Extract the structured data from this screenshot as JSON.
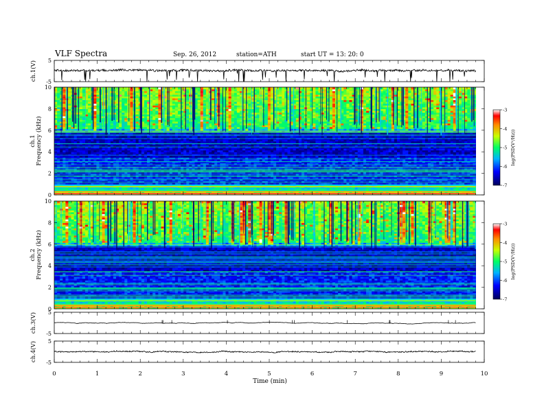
{
  "header": {
    "title": "VLF Spectra",
    "date": "Sep. 26, 2012",
    "station": "station=ATH",
    "start": "start UT =  13: 20: 0"
  },
  "chart_data": [
    {
      "type": "line",
      "name": "ch1-waveform",
      "ylabel": "ch.1(V)",
      "ylim": [
        -5,
        5
      ],
      "yticks": [
        "5",
        "-5"
      ],
      "x_range_min": [
        0,
        9.8
      ],
      "mean_v": 0.3,
      "noise_amplitude": "spiky"
    },
    {
      "type": "heatmap",
      "name": "ch1-spectrogram",
      "ylabel": "Frequency (kHz)",
      "channel_label": "ch.1",
      "ylim": [
        0,
        10
      ],
      "yticks": [
        "0",
        "2",
        "4",
        "6",
        "8",
        "10"
      ],
      "x_range_min": [
        0,
        9.8
      ],
      "colorbar": {
        "label": "log(PSD(V²/Hz))",
        "range": [
          -7,
          -3
        ],
        "ticks": [
          "-3",
          "-4",
          "-5",
          "-6",
          "-7"
        ]
      }
    },
    {
      "type": "heatmap",
      "name": "ch2-spectrogram",
      "ylabel": "Frequency (kHz)",
      "channel_label": "ch.2",
      "ylim": [
        0,
        10
      ],
      "yticks": [
        "0",
        "2",
        "4",
        "6",
        "8",
        "10"
      ],
      "x_range_min": [
        0,
        9.8
      ],
      "colorbar": {
        "label": "log(PSD(V²/Hz))",
        "range": [
          -7,
          -3
        ],
        "ticks": [
          "-3",
          "-4",
          "-5",
          "-6",
          "-7"
        ]
      }
    },
    {
      "type": "line",
      "name": "ch3-waveform",
      "ylabel": "ch.3(V)",
      "ylim": [
        -5,
        5
      ],
      "yticks": [
        "5",
        "-5"
      ],
      "x_range_min": [
        0,
        9.8
      ],
      "mean_v": 0.0,
      "noise_amplitude": "flat"
    },
    {
      "type": "line",
      "name": "ch4-waveform",
      "ylabel": "ch.4(V)",
      "ylim": [
        -5,
        5
      ],
      "yticks": [
        "5",
        "-5"
      ],
      "x_range_min": [
        0,
        9.8
      ],
      "mean_v": 0.0,
      "noise_amplitude": "moderate"
    }
  ],
  "xaxis": {
    "label": "Time (min)",
    "ticks": [
      "0",
      "1",
      "2",
      "3",
      "4",
      "5",
      "6",
      "7",
      "8",
      "9",
      "10"
    ],
    "xlim": [
      0,
      10
    ]
  },
  "colors": {
    "spectrum_low": "#00008b",
    "spectrum_mid": "#00c8ff",
    "spectrum_high": "#ff0000",
    "trace": "#000000"
  }
}
